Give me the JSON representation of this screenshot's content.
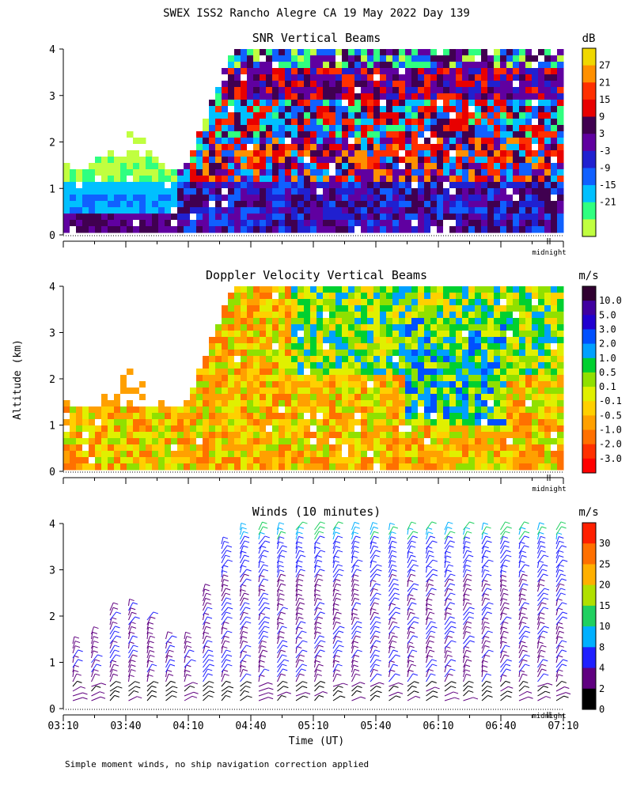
{
  "header": {
    "title": "SWEX ISS2 Rancho Alegre CA  19 May 2022 Day 139"
  },
  "ylabel": "Altitude (km)",
  "xlabel": "Time (UT)",
  "midnight_label": "midnight",
  "footnote": "Simple moment winds, no ship navigation correction applied",
  "chart_data": [
    {
      "type": "heatmap",
      "title": "SNR Vertical Beams",
      "unit": "dB",
      "y_ticks": [
        "0",
        "1",
        "2",
        "3",
        "4"
      ],
      "ylim": [
        0,
        4
      ],
      "colorbar": {
        "labels": [
          "27",
          "21",
          "15",
          "9",
          "3",
          "-3",
          "-9",
          "-15",
          "-21"
        ],
        "colors": [
          "#f0d800",
          "#ff9000",
          "#ff3000",
          "#e80000",
          "#400050",
          "#6000a0",
          "#2020d0",
          "#1060ff",
          "#00c0ff",
          "#30ff80",
          "#c0ff40"
        ]
      }
    },
    {
      "type": "heatmap",
      "title": "Doppler Velocity Vertical Beams",
      "unit": "m/s",
      "y_ticks": [
        "0",
        "1",
        "2",
        "3",
        "4"
      ],
      "ylim": [
        0,
        4
      ],
      "colorbar": {
        "labels": [
          "10.0",
          "5.0",
          "3.0",
          "2.0",
          "1.0",
          "0.5",
          "0.1",
          "-0.1",
          "-0.5",
          "-1.0",
          "-2.0",
          "-3.0"
        ],
        "colors": [
          "#300030",
          "#4000a0",
          "#2000d0",
          "#0050ff",
          "#00a0ff",
          "#00d030",
          "#90e000",
          "#e0f000",
          "#ffd000",
          "#ffa000",
          "#ff7000",
          "#ff3000",
          "#ff0000"
        ]
      }
    },
    {
      "type": "wind_barbs",
      "title": "Winds (10 minutes)",
      "unit": "m/s",
      "y_ticks": [
        "0",
        "1",
        "2",
        "3",
        "4"
      ],
      "ylim": [
        0,
        4
      ],
      "x_ticks": [
        "03:10",
        "03:40",
        "04:10",
        "04:40",
        "05:10",
        "05:40",
        "06:10",
        "06:40",
        "07:10"
      ],
      "colorbar": {
        "labels": [
          "30",
          "25",
          "20",
          "15",
          "10",
          "8",
          "4",
          "2",
          "0"
        ],
        "colors": [
          "#ff2000",
          "#ff7000",
          "#ffb000",
          "#b0e000",
          "#20d060",
          "#00b0ff",
          "#2020ff",
          "#600080",
          "#000000"
        ]
      }
    }
  ]
}
